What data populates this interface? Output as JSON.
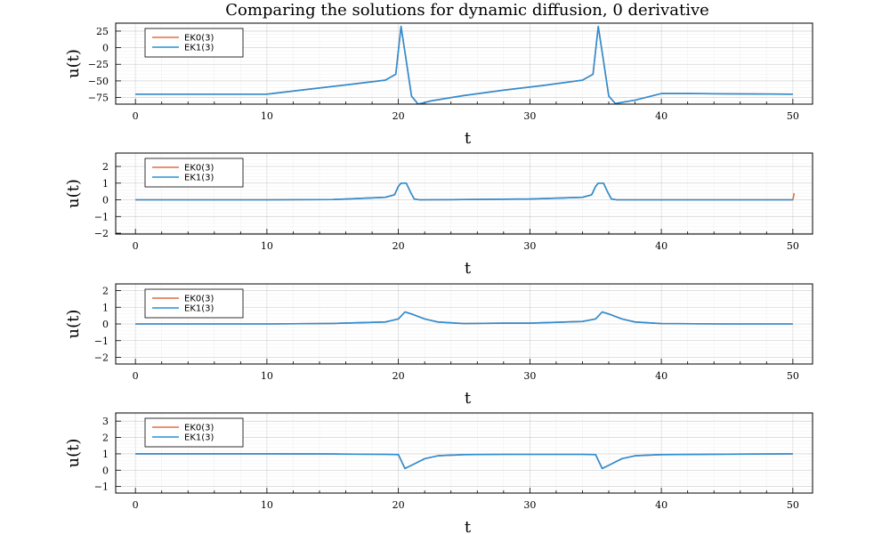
{
  "chart_data": [
    {
      "type": "line",
      "title": "Comparing the solutions for dynamic diffusion, 0 derivative",
      "xlabel": "t",
      "ylabel": "u(t)",
      "xlim": [
        -1.5,
        51.5
      ],
      "ylim": [
        -85,
        37
      ],
      "xticks": [
        0,
        10,
        20,
        30,
        40,
        50
      ],
      "yticks": [
        25,
        0,
        -25,
        -50,
        -75
      ],
      "ytick_labels": [
        "25",
        "0",
        "−25",
        "−50",
        "−75"
      ],
      "grid": true,
      "legend_position": "top-left",
      "series": [
        {
          "name": "EK0(3)",
          "color": "#e26f46",
          "x": [
            0,
            10,
            13,
            16,
            19,
            19.8,
            20.2,
            20.6,
            21,
            21.5,
            22.5,
            25,
            28,
            31,
            34,
            34.8,
            35.2,
            35.6,
            36,
            36.5,
            38,
            40,
            42,
            45,
            50
          ],
          "y": [
            -70,
            -70,
            -63,
            -56,
            -49,
            -40,
            32,
            -20,
            -73,
            -85,
            -80,
            -72,
            -64,
            -57,
            -49,
            -40,
            32,
            -20,
            -73,
            -84,
            -79,
            -69,
            -69,
            -69.5,
            -70
          ]
        },
        {
          "name": "EK1(3)",
          "color": "#2a8fd6",
          "x": [
            0,
            10,
            13,
            16,
            19,
            19.8,
            20.2,
            20.6,
            21,
            21.5,
            22.5,
            25,
            28,
            31,
            34,
            34.8,
            35.2,
            35.6,
            36,
            36.5,
            38,
            40,
            42,
            45,
            50
          ],
          "y": [
            -70,
            -70,
            -63,
            -56,
            -49,
            -40,
            32,
            -20,
            -73,
            -85,
            -80,
            -72,
            -64,
            -57,
            -49,
            -40,
            32,
            -20,
            -73,
            -84,
            -79,
            -69,
            -69,
            -69.5,
            -70
          ]
        }
      ]
    },
    {
      "type": "line",
      "xlabel": "t",
      "ylabel": "u(t)",
      "xlim": [
        -1.5,
        51.5
      ],
      "ylim": [
        -2.05,
        2.8
      ],
      "xticks": [
        0,
        10,
        20,
        30,
        40,
        50
      ],
      "yticks": [
        2,
        1,
        0,
        -1,
        -2
      ],
      "ytick_labels": [
        "2",
        "1",
        "0",
        "−1",
        "−2"
      ],
      "grid": true,
      "legend_position": "top-left",
      "series": [
        {
          "name": "EK0(3)",
          "color": "#e26f46",
          "x": [
            0,
            10,
            15,
            19,
            19.7,
            20,
            20.2,
            20.6,
            20.9,
            21.2,
            21.6,
            25,
            30,
            34,
            34.7,
            35,
            35.2,
            35.6,
            35.9,
            36.2,
            36.6,
            40,
            50,
            50.05,
            50.1
          ],
          "y": [
            0,
            0,
            0.02,
            0.15,
            0.3,
            0.8,
            1.0,
            1.0,
            0.5,
            0.05,
            0,
            0.02,
            0.05,
            0.15,
            0.3,
            0.8,
            1.0,
            1.0,
            0.5,
            0.05,
            0,
            0,
            0,
            0.2,
            0.4
          ]
        },
        {
          "name": "EK1(3)",
          "color": "#2a8fd6",
          "x": [
            0,
            10,
            15,
            19,
            19.7,
            20,
            20.2,
            20.6,
            20.9,
            21.2,
            21.6,
            25,
            30,
            34,
            34.7,
            35,
            35.2,
            35.6,
            35.9,
            36.2,
            36.6,
            40,
            50
          ],
          "y": [
            0,
            0,
            0.02,
            0.15,
            0.3,
            0.8,
            1.0,
            1.0,
            0.5,
            0.05,
            0,
            0.02,
            0.05,
            0.15,
            0.3,
            0.8,
            1.0,
            1.0,
            0.5,
            0.05,
            0,
            0,
            0
          ]
        }
      ]
    },
    {
      "type": "line",
      "xlabel": "t",
      "ylabel": "u(t)",
      "xlim": [
        -1.5,
        51.5
      ],
      "ylim": [
        -2.4,
        2.4
      ],
      "xticks": [
        0,
        10,
        20,
        30,
        40,
        50
      ],
      "yticks": [
        2,
        1,
        0,
        -1,
        -2
      ],
      "ytick_labels": [
        "2",
        "1",
        "0",
        "−1",
        "−2"
      ],
      "grid": true,
      "legend_position": "top-left",
      "series": [
        {
          "name": "EK0(3)",
          "color": "#e26f46",
          "x": [
            0,
            10,
            15,
            19,
            20,
            20.5,
            21,
            22,
            23,
            25,
            28,
            30,
            34,
            35,
            35.5,
            36,
            37,
            38,
            40,
            45,
            50
          ],
          "y": [
            0,
            0,
            0.03,
            0.12,
            0.3,
            0.72,
            0.6,
            0.3,
            0.12,
            0.02,
            0.05,
            0.05,
            0.15,
            0.3,
            0.72,
            0.6,
            0.3,
            0.12,
            0.02,
            0,
            0
          ]
        },
        {
          "name": "EK1(3)",
          "color": "#2a8fd6",
          "x": [
            0,
            10,
            15,
            19,
            20,
            20.5,
            21,
            22,
            23,
            25,
            28,
            30,
            34,
            35,
            35.5,
            36,
            37,
            38,
            40,
            45,
            50
          ],
          "y": [
            0,
            0,
            0.03,
            0.12,
            0.3,
            0.72,
            0.6,
            0.3,
            0.12,
            0.02,
            0.05,
            0.05,
            0.15,
            0.3,
            0.72,
            0.6,
            0.3,
            0.12,
            0.02,
            0,
            0
          ]
        }
      ]
    },
    {
      "type": "line",
      "xlabel": "t",
      "ylabel": "u(t)",
      "xlim": [
        -1.5,
        51.5
      ],
      "ylim": [
        -1.4,
        3.5
      ],
      "xticks": [
        0,
        10,
        20,
        30,
        40,
        50
      ],
      "yticks": [
        3,
        2,
        1,
        0,
        -1
      ],
      "ytick_labels": [
        "3",
        "2",
        "1",
        "0",
        "−1"
      ],
      "grid": true,
      "legend_position": "top-left",
      "series": [
        {
          "name": "EK0(3)",
          "color": "#e26f46",
          "x": [
            0,
            10,
            15,
            19,
            20,
            20.5,
            21,
            22,
            23,
            25,
            28,
            30,
            34,
            35,
            35.5,
            36,
            37,
            38,
            40,
            45,
            50
          ],
          "y": [
            1,
            1,
            0.99,
            0.97,
            0.95,
            0.1,
            0.3,
            0.7,
            0.88,
            0.95,
            0.97,
            0.97,
            0.97,
            0.95,
            0.1,
            0.3,
            0.7,
            0.88,
            0.95,
            0.98,
            1
          ]
        },
        {
          "name": "EK1(3)",
          "color": "#2a8fd6",
          "x": [
            0,
            10,
            15,
            19,
            20,
            20.5,
            21,
            22,
            23,
            25,
            28,
            30,
            34,
            35,
            35.5,
            36,
            37,
            38,
            40,
            45,
            50
          ],
          "y": [
            1,
            1,
            0.99,
            0.97,
            0.95,
            0.1,
            0.3,
            0.7,
            0.88,
            0.95,
            0.97,
            0.97,
            0.97,
            0.95,
            0.1,
            0.3,
            0.7,
            0.88,
            0.95,
            0.98,
            1
          ]
        }
      ]
    }
  ]
}
